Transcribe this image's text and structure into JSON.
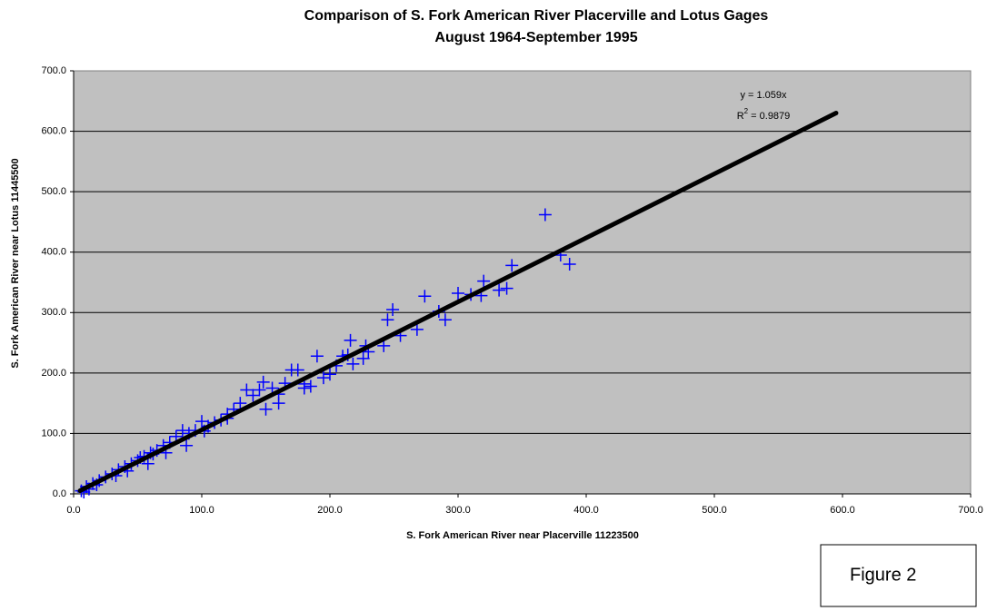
{
  "chart_data": {
    "type": "scatter",
    "title": "Comparison of S. Fork American River Placerville and Lotus Gages",
    "subtitle": "August 1964-September 1995",
    "x_label": "S. Fork American River near Placerville 11223500",
    "y_label": "S. Fork American River near Lotus 11445500",
    "xlim": [
      0,
      700
    ],
    "ylim": [
      0,
      700
    ],
    "xticks": [
      {
        "value": 0,
        "label": "0.0"
      },
      {
        "value": 100,
        "label": "100.0"
      },
      {
        "value": 200,
        "label": "200.0"
      },
      {
        "value": 300,
        "label": "300.0"
      },
      {
        "value": 400,
        "label": "400.0"
      },
      {
        "value": 500,
        "label": "500.0"
      },
      {
        "value": 600,
        "label": "600.0"
      },
      {
        "value": 700,
        "label": "700.0"
      }
    ],
    "yticks": [
      {
        "value": 0,
        "label": "0.0"
      },
      {
        "value": 100,
        "label": "100.0"
      },
      {
        "value": 200,
        "label": "200.0"
      },
      {
        "value": 300,
        "label": "300.0"
      },
      {
        "value": 400,
        "label": "400.0"
      },
      {
        "value": 500,
        "label": "500.0"
      },
      {
        "value": 600,
        "label": "600.0"
      },
      {
        "value": 700,
        "label": "700.0"
      }
    ],
    "grid": true,
    "x": [
      368,
      380,
      387,
      342,
      320,
      318,
      332,
      338,
      300,
      310,
      274,
      290,
      285,
      268,
      249,
      245,
      255,
      242,
      230,
      226,
      228,
      216,
      214,
      218,
      210,
      205,
      190,
      195,
      185,
      180,
      175,
      170,
      165,
      160,
      155,
      148,
      145,
      140,
      135,
      130,
      125,
      120,
      115,
      110,
      105,
      100,
      95,
      90,
      85,
      80,
      75,
      70,
      65,
      60,
      55,
      50,
      45,
      40,
      35,
      30,
      25,
      20,
      15,
      10,
      6,
      8,
      88,
      72,
      58,
      42,
      160,
      150,
      200,
      180,
      120,
      102,
      62,
      52,
      33,
      18,
      12
    ],
    "series": [
      {
        "color": "#0000ff",
        "values": [
          462,
          395,
          380,
          378,
          352,
          328,
          337,
          340,
          332,
          330,
          327,
          288,
          302,
          272,
          305,
          288,
          262,
          245,
          235,
          224,
          245,
          254,
          230,
          215,
          228,
          212,
          228,
          192,
          178,
          182,
          205,
          205,
          183,
          165,
          175,
          185,
          172,
          163,
          172,
          150,
          140,
          132,
          122,
          118,
          112,
          120,
          105,
          100,
          105,
          95,
          85,
          80,
          72,
          68,
          62,
          55,
          50,
          45,
          40,
          33,
          28,
          22,
          17,
          12,
          5,
          3,
          80,
          68,
          50,
          38,
          150,
          140,
          198,
          175,
          125,
          104,
          66,
          60,
          30,
          15,
          8
        ]
      }
    ],
    "trendline": {
      "color": "#000000",
      "x": [
        5,
        595
      ],
      "y": [
        5.3,
        630.1
      ]
    },
    "equation_label": "y = 1.059x",
    "r_squared_label": {
      "base": "R",
      "sup": "2",
      "rest": " = 0.9879"
    },
    "figure_label": "Figure 2"
  }
}
